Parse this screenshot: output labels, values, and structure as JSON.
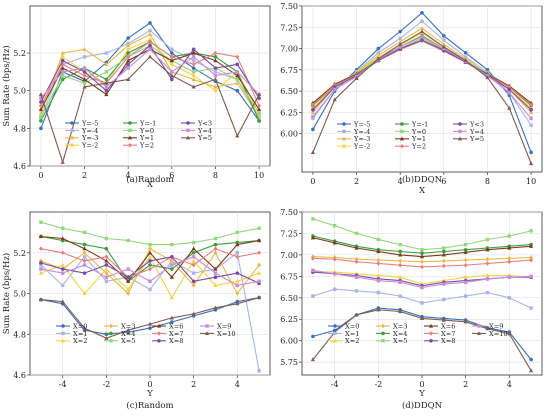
{
  "panels": [
    {
      "caption": "(a)Random",
      "xlabel": "X",
      "ylabel": "Sum Rate (bps/Hz)",
      "xlim": [
        -0.5,
        10.5
      ],
      "ylim": [
        4.6,
        5.45
      ],
      "xticks": [
        "0",
        "2",
        "4",
        "6",
        "8",
        "10"
      ],
      "xtick_values": [
        0,
        2,
        4,
        6,
        8,
        10
      ],
      "yticks": [
        "4.6",
        "4.8",
        "5.0",
        "5.2"
      ],
      "ytick_values": [
        4.6,
        4.8,
        5.0,
        5.2
      ],
      "legend_cols": 3,
      "x": [
        0,
        1,
        2,
        3,
        4,
        5,
        6,
        7,
        8,
        9,
        10
      ],
      "series": [
        {
          "name": "Y=-5",
          "color": "#3b6fb6",
          "values": [
            4.8,
            5.1,
            5.05,
            5.15,
            5.28,
            5.36,
            5.2,
            5.12,
            5.05,
            5.0,
            4.84
          ]
        },
        {
          "name": "Y=-4",
          "color": "#aab3e6",
          "values": [
            4.86,
            5.14,
            5.18,
            5.2,
            5.25,
            5.32,
            5.22,
            5.16,
            5.1,
            5.06,
            4.86
          ]
        },
        {
          "name": "Y=-3",
          "color": "#e8b94a",
          "values": [
            4.88,
            5.2,
            5.22,
            5.14,
            5.24,
            5.3,
            5.1,
            5.06,
            5.02,
            5.04,
            4.86
          ]
        },
        {
          "name": "Y=-2",
          "color": "#f3d24a",
          "values": [
            4.9,
            5.18,
            5.1,
            5.04,
            5.22,
            5.27,
            5.14,
            5.08,
            5.0,
            5.1,
            4.88
          ]
        },
        {
          "name": "Y=-1",
          "color": "#3f9b3f",
          "values": [
            4.84,
            5.06,
            5.12,
            5.06,
            5.2,
            5.26,
            5.18,
            5.2,
            5.18,
            5.1,
            4.84
          ]
        },
        {
          "name": "Y=0",
          "color": "#92d87a",
          "values": [
            4.86,
            5.08,
            5.04,
            5.1,
            5.18,
            5.24,
            5.16,
            5.1,
            5.12,
            5.06,
            4.88
          ]
        },
        {
          "name": "Y=1",
          "color": "#7a3a1a",
          "values": [
            4.9,
            5.12,
            5.06,
            4.98,
            5.16,
            5.22,
            5.16,
            5.2,
            5.16,
            5.08,
            4.9
          ]
        },
        {
          "name": "Y=2",
          "color": "#e58080",
          "values": [
            4.92,
            5.14,
            5.08,
            5.04,
            5.18,
            5.26,
            5.18,
            5.14,
            5.2,
            5.18,
            4.92
          ]
        },
        {
          "name": "Y<3",
          "color": "#7b4aa5",
          "values": [
            4.94,
            5.16,
            5.1,
            5.0,
            5.14,
            5.24,
            5.06,
            5.22,
            5.12,
            5.14,
            4.96
          ]
        },
        {
          "name": "Y=4",
          "color": "#c58ed6",
          "values": [
            4.96,
            5.1,
            5.12,
            5.02,
            5.12,
            5.22,
            5.1,
            5.18,
            5.08,
            5.1,
            4.98
          ]
        },
        {
          "name": "Y=5",
          "color": "#7d5a52",
          "values": [
            4.98,
            4.62,
            5.02,
            5.04,
            5.06,
            5.18,
            5.08,
            5.02,
            5.06,
            4.76,
            4.98
          ]
        }
      ]
    },
    {
      "caption": "(b)DDQN",
      "xlabel": "X",
      "ylabel": "",
      "xlim": [
        -0.5,
        10.5
      ],
      "ylim": [
        5.55,
        7.5
      ],
      "xticks": [
        "0",
        "2",
        "4",
        "6",
        "8",
        "10"
      ],
      "xtick_values": [
        0,
        2,
        4,
        6,
        8,
        10
      ],
      "yticks": [
        "6.00",
        "6.25",
        "6.50",
        "6.75",
        "7.00",
        "7.25",
        "7.50"
      ],
      "ytick_values": [
        6.0,
        6.25,
        6.5,
        6.75,
        7.0,
        7.25,
        7.5
      ],
      "legend_cols": 3,
      "x": [
        0,
        1,
        2,
        3,
        4,
        5,
        6,
        7,
        8,
        9,
        10
      ],
      "series": [
        {
          "name": "Y=-5",
          "color": "#3b6fb6",
          "values": [
            6.05,
            6.5,
            6.75,
            7.0,
            7.2,
            7.42,
            7.15,
            6.95,
            6.75,
            6.45,
            5.78
          ]
        },
        {
          "name": "Y=-4",
          "color": "#aab3e6",
          "values": [
            6.18,
            6.52,
            6.73,
            6.95,
            7.12,
            7.32,
            7.1,
            6.9,
            6.72,
            6.48,
            6.1
          ]
        },
        {
          "name": "Y=-3",
          "color": "#e8b94a",
          "values": [
            6.25,
            6.55,
            6.72,
            6.92,
            7.08,
            7.24,
            7.05,
            6.88,
            6.7,
            6.52,
            6.25
          ]
        },
        {
          "name": "Y=-2",
          "color": "#f3d24a",
          "values": [
            6.3,
            6.56,
            6.71,
            6.9,
            7.04,
            7.18,
            7.02,
            6.86,
            6.7,
            6.54,
            6.3
          ]
        },
        {
          "name": "Y=-1",
          "color": "#3f9b3f",
          "values": [
            6.33,
            6.57,
            6.7,
            6.88,
            7.02,
            7.15,
            7.0,
            6.85,
            6.7,
            6.55,
            6.33
          ]
        },
        {
          "name": "Y=0",
          "color": "#92d87a",
          "values": [
            6.35,
            6.58,
            6.71,
            6.87,
            7.0,
            7.12,
            6.99,
            6.85,
            6.71,
            6.56,
            6.35
          ]
        },
        {
          "name": "Y=1",
          "color": "#7a3a1a",
          "values": [
            6.36,
            6.58,
            6.7,
            6.86,
            6.99,
            7.1,
            6.98,
            6.84,
            6.7,
            6.56,
            6.36
          ]
        },
        {
          "name": "Y=2",
          "color": "#e58080",
          "values": [
            6.34,
            6.57,
            6.69,
            6.86,
            6.99,
            7.09,
            6.97,
            6.84,
            6.69,
            6.55,
            6.34
          ]
        },
        {
          "name": "Y<3",
          "color": "#7b4aa5",
          "values": [
            6.28,
            6.55,
            6.68,
            6.86,
            7.0,
            7.1,
            6.98,
            6.84,
            6.69,
            6.52,
            6.28
          ]
        },
        {
          "name": "Y=4",
          "color": "#c58ed6",
          "values": [
            6.2,
            6.52,
            6.67,
            6.87,
            7.02,
            7.14,
            7.0,
            6.85,
            6.68,
            6.48,
            6.18
          ]
        },
        {
          "name": "Y=5",
          "color": "#7d5a52",
          "values": [
            5.78,
            6.4,
            6.65,
            6.88,
            7.05,
            7.2,
            7.02,
            6.86,
            6.66,
            6.3,
            5.65
          ]
        }
      ]
    },
    {
      "caption": "(c)Random",
      "xlabel": "Y",
      "ylabel": "Sum Rate (bps/Hz)",
      "xlim": [
        -5.5,
        5.5
      ],
      "ylim": [
        4.6,
        5.4
      ],
      "xticks": [
        "-4",
        "-2",
        "0",
        "2",
        "4"
      ],
      "xtick_values": [
        -4,
        -2,
        0,
        2,
        4
      ],
      "yticks": [
        "4.6",
        "4.8",
        "5.0",
        "5.2"
      ],
      "ytick_values": [
        4.6,
        4.8,
        5.0,
        5.2
      ],
      "legend_cols": 4,
      "x": [
        -5,
        -4,
        -3,
        -2,
        -1,
        0,
        1,
        2,
        3,
        4,
        5
      ],
      "series": [
        {
          "name": "X=0",
          "color": "#3b6fb6",
          "values": [
            4.97,
            4.95,
            4.82,
            4.8,
            4.81,
            4.83,
            4.86,
            4.89,
            4.92,
            4.96,
            4.98
          ]
        },
        {
          "name": "X=1",
          "color": "#aab3e6",
          "values": [
            5.14,
            5.04,
            5.18,
            5.06,
            5.08,
            5.02,
            5.16,
            5.1,
            5.12,
            5.2,
            4.62
          ]
        },
        {
          "name": "X=2",
          "color": "#f3d24a",
          "values": [
            5.1,
            5.14,
            5.0,
            5.12,
            5.02,
            5.18,
            4.98,
            5.16,
            5.04,
            5.06,
            5.1
          ]
        },
        {
          "name": "X=3",
          "color": "#e8b94a",
          "values": [
            5.16,
            5.12,
            5.2,
            5.1,
            5.0,
            5.22,
            5.16,
            5.04,
            5.2,
            5.0,
            5.14
          ]
        },
        {
          "name": "X=4",
          "color": "#3f9b3f",
          "values": [
            5.28,
            5.26,
            5.24,
            5.22,
            5.06,
            5.14,
            5.12,
            5.2,
            5.24,
            5.25,
            5.26
          ]
        },
        {
          "name": "X=5",
          "color": "#92d87a",
          "values": [
            5.35,
            5.32,
            5.3,
            5.27,
            5.26,
            5.24,
            5.24,
            5.25,
            5.27,
            5.3,
            5.32
          ]
        },
        {
          "name": "X=6",
          "color": "#7a3a1a",
          "values": [
            5.28,
            5.27,
            5.22,
            5.16,
            5.06,
            5.2,
            5.08,
            5.22,
            5.12,
            5.24,
            5.26
          ]
        },
        {
          "name": "X=7",
          "color": "#e58080",
          "values": [
            5.22,
            5.2,
            5.16,
            5.18,
            5.08,
            5.12,
            5.18,
            5.14,
            5.22,
            5.18,
            5.2
          ]
        },
        {
          "name": "X=8",
          "color": "#7b4aa5",
          "values": [
            5.15,
            5.12,
            5.1,
            5.14,
            5.08,
            5.16,
            5.18,
            5.06,
            5.08,
            5.1,
            5.05
          ]
        },
        {
          "name": "X=9",
          "color": "#c58ed6",
          "values": [
            5.12,
            5.1,
            5.14,
            5.08,
            5.12,
            5.06,
            5.14,
            5.18,
            5.1,
            5.04,
            5.06
          ]
        },
        {
          "name": "X=10",
          "color": "#7d5a52",
          "values": [
            4.97,
            4.96,
            4.83,
            4.78,
            4.82,
            4.85,
            4.88,
            4.9,
            4.93,
            4.95,
            4.98
          ]
        }
      ]
    },
    {
      "caption": "(d)DDQN",
      "xlabel": "Y",
      "ylabel": "",
      "xlim": [
        -5.5,
        5.5
      ],
      "ylim": [
        5.6,
        7.5
      ],
      "xticks": [
        "-4",
        "-2",
        "0",
        "2",
        "4"
      ],
      "xtick_values": [
        -4,
        -2,
        0,
        2,
        4
      ],
      "yticks": [
        "5.75",
        "6.00",
        "6.25",
        "6.50",
        "6.75",
        "7.00",
        "7.25",
        "7.50"
      ],
      "ytick_values": [
        5.75,
        6.0,
        6.25,
        6.5,
        6.75,
        7.0,
        7.25,
        7.5
      ],
      "legend_cols": 4,
      "x": [
        -5,
        -4,
        -3,
        -2,
        -1,
        0,
        1,
        2,
        3,
        4,
        5
      ],
      "series": [
        {
          "name": "X=0",
          "color": "#3b6fb6",
          "values": [
            6.05,
            6.12,
            6.3,
            6.38,
            6.36,
            6.28,
            6.26,
            6.24,
            6.15,
            6.1,
            5.78
          ]
        },
        {
          "name": "X=1",
          "color": "#aab3e6",
          "values": [
            6.52,
            6.6,
            6.58,
            6.56,
            6.52,
            6.44,
            6.48,
            6.52,
            6.56,
            6.5,
            6.38
          ]
        },
        {
          "name": "X=2",
          "color": "#f3d24a",
          "values": [
            6.8,
            6.8,
            6.78,
            6.76,
            6.74,
            6.66,
            6.7,
            6.74,
            6.76,
            6.76,
            6.74
          ]
        },
        {
          "name": "X=3",
          "color": "#e8b94a",
          "values": [
            6.98,
            6.97,
            6.95,
            6.94,
            6.93,
            6.92,
            6.93,
            6.94,
            6.95,
            6.96,
            6.97
          ]
        },
        {
          "name": "X=4",
          "color": "#3f9b3f",
          "values": [
            7.22,
            7.16,
            7.1,
            7.06,
            7.04,
            7.02,
            7.04,
            7.06,
            7.08,
            7.1,
            7.12
          ]
        },
        {
          "name": "X=5",
          "color": "#92d87a",
          "values": [
            7.42,
            7.34,
            7.25,
            7.18,
            7.12,
            7.06,
            7.08,
            7.12,
            7.18,
            7.22,
            7.28
          ]
        },
        {
          "name": "X=6",
          "color": "#7a3a1a",
          "values": [
            7.2,
            7.14,
            7.08,
            7.04,
            7.0,
            6.98,
            7.0,
            7.03,
            7.06,
            7.08,
            7.1
          ]
        },
        {
          "name": "X=7",
          "color": "#e58080",
          "values": [
            6.96,
            6.95,
            6.92,
            6.9,
            6.88,
            6.86,
            6.87,
            6.88,
            6.9,
            6.92,
            6.94
          ]
        },
        {
          "name": "X=8",
          "color": "#7b4aa5",
          "values": [
            6.8,
            6.78,
            6.76,
            6.72,
            6.7,
            6.64,
            6.68,
            6.7,
            6.72,
            6.74,
            6.74
          ]
        },
        {
          "name": "X=9",
          "color": "#c58ed6",
          "values": [
            6.82,
            6.78,
            6.74,
            6.7,
            6.68,
            6.62,
            6.66,
            6.68,
            6.72,
            6.74,
            6.75
          ]
        },
        {
          "name": "X=10",
          "color": "#7d5a52",
          "values": [
            5.78,
            6.1,
            6.3,
            6.36,
            6.34,
            6.26,
            6.24,
            6.22,
            6.14,
            6.08,
            5.65
          ]
        }
      ]
    }
  ]
}
